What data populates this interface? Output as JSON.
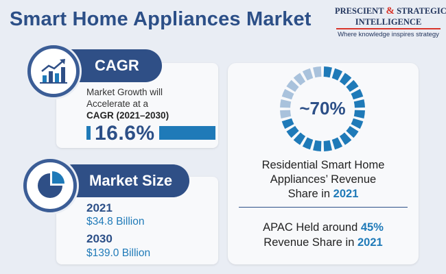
{
  "header": {
    "title": "Smart Home Appliances Market"
  },
  "logo": {
    "line1_a": "PRESCIENT",
    "ampersand": "&",
    "line1_b": "STRATEGIC",
    "line2": "INTELLIGENCE",
    "tagline": "Where knowledge inspires strategy"
  },
  "cagr": {
    "label": "CAGR",
    "line1": "Market Growth will",
    "line2": "Accelerate at a",
    "line3": "CAGR (2021–2030)",
    "value": "16.6%",
    "icon": "growth-chart-icon"
  },
  "market_size": {
    "label": "Market Size",
    "icon": "pie-chart-icon",
    "entries": [
      {
        "year": "2021",
        "value": "$34.8 Billion"
      },
      {
        "year": "2030",
        "value": "$139.0 Billion"
      }
    ]
  },
  "residential": {
    "ring_label": "~70%",
    "share_fraction": 0.7,
    "line1": "Residential Smart Home",
    "line2": "Appliances’ Revenue",
    "line3_a": "Share in",
    "line3_b": "2021"
  },
  "apac": {
    "line1_a": "APAC Held around",
    "line1_b": "45%",
    "line2_a": "Revenue Share in",
    "line2_b": "2021"
  },
  "colors": {
    "primary": "#2f4f86",
    "accent": "#1f7ab8",
    "ring_active": "#1f7ab8",
    "ring_inactive": "#a9c2dc",
    "background": "#e9edf4",
    "logo_red": "#d8342a"
  }
}
